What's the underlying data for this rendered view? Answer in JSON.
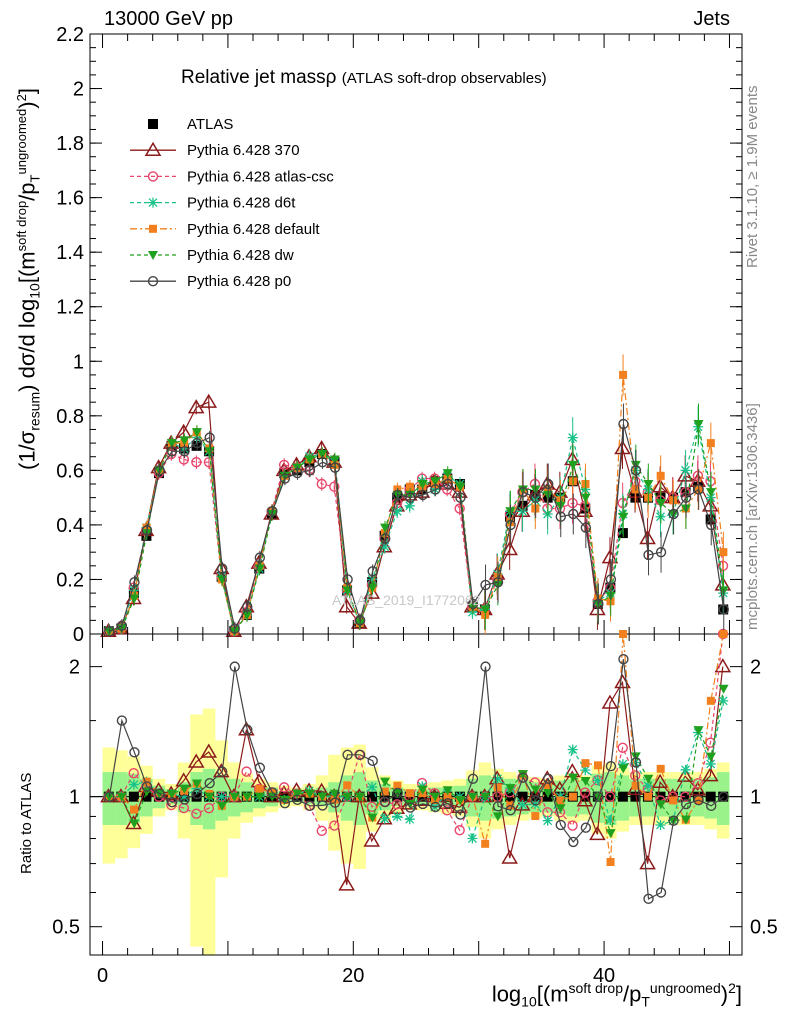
{
  "header": {
    "left": "13000 GeV pp",
    "right": "Jets",
    "title_main": "Relative jet massρ",
    "title_sub": "(ATLAS soft-drop observables)",
    "watermark": "ATLAS_2019_I1772062",
    "side_top": "Rivet 3.1.10, ≥ 1.9M events",
    "side_bottom": "mcplots.cern.ch [arXiv:1306.3436]"
  },
  "axes": {
    "ylabel_main": "(1/σ_resum) dσ/d log10[(m^soft drop/p_T^ungroomed)²]",
    "ylabel_ratio": "Ratio to ATLAS",
    "xlabel": "log10[(m^soft drop/p_T^ungroomed)²]"
  },
  "legend": [
    {
      "label": "ATLAS",
      "color": "#000000",
      "marker": "square"
    },
    {
      "label": "Pythia 6.428 370",
      "color": "#8b1a1a",
      "marker": "triangle-open"
    },
    {
      "label": "Pythia 6.428 atlas-csc",
      "color": "#e8456b",
      "marker": "circle-open"
    },
    {
      "label": "Pythia 6.428 d6t",
      "color": "#19c28a",
      "marker": "star"
    },
    {
      "label": "Pythia 6.428 default",
      "color": "#f2801e",
      "marker": "square-filled"
    },
    {
      "label": "Pythia 6.428 dw",
      "color": "#1fa11f",
      "marker": "triangle-down"
    },
    {
      "label": "Pythia 6.428 p0",
      "color": "#444444",
      "marker": "circle-open"
    }
  ],
  "chart_data": {
    "type": "line",
    "x": [
      0.5,
      1.5,
      2.5,
      3.5,
      4.5,
      5.5,
      6.5,
      7.5,
      8.5,
      9.5,
      10.5,
      11.5,
      12.5,
      13.5,
      14.5,
      15.5,
      16.5,
      17.5,
      18.5,
      19.5,
      20.5,
      21.5,
      22.5,
      23.5,
      24.5,
      25.5,
      26.5,
      27.5,
      28.5,
      29.5,
      30.5,
      31.5,
      32.5,
      33.5,
      34.5,
      35.5,
      36.5,
      37.5,
      38.5,
      39.5,
      40.5,
      41.5,
      42.5,
      43.5,
      44.5,
      45.5,
      46.5,
      47.5,
      48.5,
      49.5
    ],
    "xlim": [
      -1,
      51
    ],
    "ylim_main": [
      0,
      2.2
    ],
    "yticks_main": [
      0,
      0.2,
      0.4,
      0.6,
      0.8,
      1,
      1.2,
      1.4,
      1.6,
      1.8,
      2,
      2.2
    ],
    "ytick_labels_main": [
      "0",
      "0.2",
      "0.4",
      "0.6",
      "0.8",
      "1",
      "1.2",
      "1.4",
      "1.6",
      "1.8",
      "2",
      "2.2"
    ],
    "ylim_ratio": [
      0.43,
      2.38
    ],
    "yticks_ratio": [
      0.5,
      1,
      2
    ],
    "ytick_labels_ratio": [
      "0.5",
      "1",
      "2"
    ],
    "xticks": [
      0,
      20,
      40
    ],
    "xtick_labels": [
      "0",
      "20",
      "40"
    ],
    "series": [
      {
        "name": "ATLAS",
        "values": [
          0.01,
          0.02,
          0.15,
          0.36,
          0.59,
          0.69,
          0.68,
          0.69,
          0.67,
          0.21,
          0.01,
          0.07,
          0.24,
          0.44,
          0.59,
          0.6,
          0.63,
          0.66,
          0.63,
          0.16,
          0.04,
          0.19,
          0.36,
          0.5,
          0.53,
          0.53,
          0.56,
          0.57,
          0.55,
          0.1,
          0.09,
          0.2,
          0.43,
          0.47,
          0.51,
          0.5,
          0.5,
          0.56,
          0.46,
          0.11,
          0.17,
          0.37,
          0.5,
          0.5,
          0.5,
          0.5,
          0.52,
          0.54,
          0.42,
          0.09
        ]
      },
      {
        "name": "Pythia 6.428 370",
        "values": [
          0.01,
          0.02,
          0.13,
          0.38,
          0.61,
          0.7,
          0.74,
          0.83,
          0.85,
          0.24,
          0.01,
          0.1,
          0.26,
          0.44,
          0.6,
          0.62,
          0.65,
          0.68,
          0.63,
          0.1,
          0.04,
          0.15,
          0.32,
          0.47,
          0.51,
          0.52,
          0.56,
          0.55,
          0.52,
          0.1,
          0.09,
          0.22,
          0.31,
          0.45,
          0.51,
          0.55,
          0.52,
          0.64,
          0.45,
          0.09,
          0.28,
          0.68,
          0.52,
          0.35,
          0.54,
          0.5,
          0.58,
          0.56,
          0.47,
          0.18
        ]
      },
      {
        "name": "Pythia 6.428 atlas-csc",
        "values": [
          0.01,
          0.02,
          0.17,
          0.38,
          0.59,
          0.66,
          0.64,
          0.63,
          0.63,
          0.21,
          0.01,
          0.08,
          0.25,
          0.45,
          0.62,
          0.61,
          0.6,
          0.55,
          0.54,
          0.16,
          0.05,
          0.18,
          0.35,
          0.48,
          0.53,
          0.57,
          0.57,
          0.53,
          0.46,
          0.1,
          0.09,
          0.2,
          0.44,
          0.52,
          0.55,
          0.46,
          0.46,
          0.48,
          0.47,
          0.12,
          0.17,
          0.48,
          0.56,
          0.52,
          0.49,
          0.5,
          0.52,
          0.58,
          0.56,
          0.25
        ]
      },
      {
        "name": "Pythia 6.428 d6t",
        "values": [
          0.01,
          0.02,
          0.16,
          0.39,
          0.6,
          0.7,
          0.68,
          0.72,
          0.67,
          0.21,
          0.01,
          0.07,
          0.24,
          0.45,
          0.58,
          0.61,
          0.65,
          0.66,
          0.63,
          0.16,
          0.04,
          0.2,
          0.32,
          0.45,
          0.47,
          0.56,
          0.53,
          0.58,
          0.55,
          0.08,
          0.09,
          0.22,
          0.45,
          0.45,
          0.49,
          0.44,
          0.5,
          0.72,
          0.53,
          0.12,
          0.15,
          0.44,
          0.6,
          0.53,
          0.43,
          0.44,
          0.6,
          0.76,
          0.5,
          0.15
        ]
      },
      {
        "name": "Pythia 6.428 default",
        "values": [
          0.01,
          0.02,
          0.14,
          0.39,
          0.6,
          0.7,
          0.7,
          0.74,
          0.68,
          0.2,
          0.01,
          0.07,
          0.25,
          0.45,
          0.58,
          0.61,
          0.64,
          0.66,
          0.62,
          0.17,
          0.04,
          0.17,
          0.37,
          0.53,
          0.54,
          0.54,
          0.55,
          0.57,
          0.54,
          0.1,
          0.07,
          0.21,
          0.41,
          0.53,
          0.46,
          0.53,
          0.49,
          0.56,
          0.55,
          0.13,
          0.12,
          0.95,
          0.53,
          0.5,
          0.58,
          0.49,
          0.46,
          0.53,
          0.7,
          0.3
        ]
      },
      {
        "name": "Pythia 6.428 dw",
        "values": [
          0.01,
          0.02,
          0.13,
          0.37,
          0.6,
          0.7,
          0.71,
          0.74,
          0.67,
          0.2,
          0.01,
          0.07,
          0.24,
          0.44,
          0.58,
          0.61,
          0.64,
          0.66,
          0.64,
          0.16,
          0.04,
          0.17,
          0.39,
          0.51,
          0.51,
          0.55,
          0.56,
          0.59,
          0.54,
          0.1,
          0.09,
          0.18,
          0.45,
          0.53,
          0.53,
          0.51,
          0.47,
          0.62,
          0.5,
          0.11,
          0.14,
          0.43,
          0.62,
          0.55,
          0.48,
          0.44,
          0.46,
          0.77,
          0.52,
          0.16
        ]
      },
      {
        "name": "Pythia 6.428 p0",
        "values": [
          0.01,
          0.03,
          0.19,
          0.38,
          0.6,
          0.67,
          0.67,
          0.7,
          0.72,
          0.24,
          0.02,
          0.1,
          0.28,
          0.45,
          0.57,
          0.59,
          0.6,
          0.63,
          0.61,
          0.2,
          0.05,
          0.23,
          0.35,
          0.51,
          0.5,
          0.51,
          0.53,
          0.55,
          0.5,
          0.11,
          0.18,
          0.19,
          0.4,
          0.52,
          0.5,
          0.55,
          0.43,
          0.44,
          0.39,
          0.11,
          0.2,
          0.77,
          0.6,
          0.29,
          0.3,
          0.44,
          0.5,
          0.53,
          0.4,
          0.09
        ]
      }
    ],
    "ratio_band_inner": [
      0.14,
      0.14,
      0.13,
      0.1,
      0.06,
      0.04,
      0.08,
      0.14,
      0.16,
      0.12,
      0.1,
      0.08,
      0.06,
      0.05,
      0.03,
      0.03,
      0.04,
      0.05,
      0.08,
      0.12,
      0.14,
      0.09,
      0.07,
      0.05,
      0.04,
      0.04,
      0.05,
      0.05,
      0.06,
      0.1,
      0.12,
      0.11,
      0.1,
      0.09,
      0.08,
      0.08,
      0.09,
      0.1,
      0.09,
      0.13,
      0.14,
      0.12,
      0.1,
      0.1,
      0.1,
      0.1,
      0.1,
      0.1,
      0.11,
      0.14
    ],
    "ratio_band_outer": [
      0.3,
      0.28,
      0.24,
      0.18,
      0.1,
      0.07,
      0.2,
      0.55,
      0.6,
      0.35,
      0.2,
      0.13,
      0.1,
      0.08,
      0.06,
      0.05,
      0.07,
      0.12,
      0.25,
      0.3,
      0.32,
      0.17,
      0.12,
      0.09,
      0.07,
      0.07,
      0.08,
      0.09,
      0.1,
      0.15,
      0.2,
      0.16,
      0.14,
      0.12,
      0.11,
      0.1,
      0.12,
      0.13,
      0.12,
      0.18,
      0.2,
      0.17,
      0.14,
      0.14,
      0.14,
      0.14,
      0.14,
      0.14,
      0.16,
      0.2
    ]
  }
}
